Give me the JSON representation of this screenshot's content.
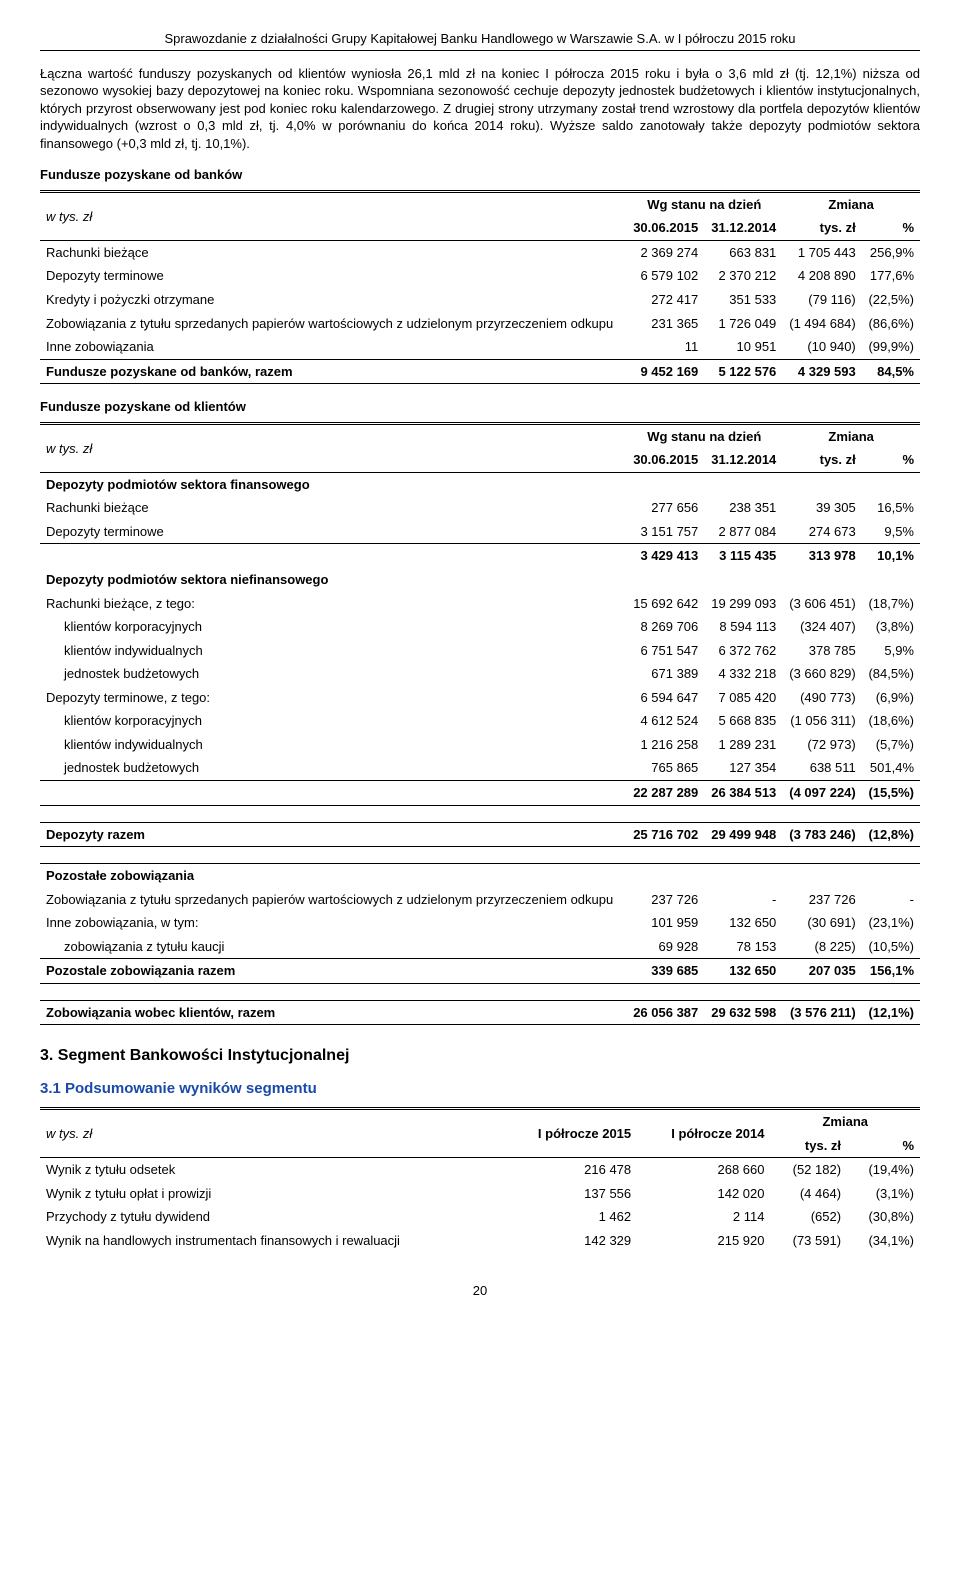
{
  "header": "Sprawozdanie z działalności Grupy Kapitałowej Banku Handlowego w Warszawie S.A. w I półroczu 2015 roku",
  "para1": "Łączna wartość funduszy pozyskanych od klientów wyniosła 26,1 mld zł na koniec I półrocza 2015 roku i była o 3,6 mld zł (tj. 12,1%) niższa od sezonowo wysokiej bazy depozytowej na koniec roku. Wspomniana sezonowość cechuje depozyty jednostek budżetowych i klientów instytucjonalnych, których przyrost obserwowany jest pod koniec roku kalendarzowego. Z drugiej strony utrzymany został trend wzrostowy dla portfela depozytów klientów indywidualnych (wzrost o 0,3 mld zł, tj. 4,0% w porównaniu do końca 2014 roku). Wyższe saldo zanotowały także depozyty podmiotów sektora finansowego (+0,3 mld zł, tj. 10,1%).",
  "banks_heading": "Fundusze pozyskane od banków",
  "col_unit": "w tys. zł",
  "col_wg": "Wg stanu na dzień",
  "col_zmiana": "Zmiana",
  "col_d1": "30.06.2015",
  "col_d2": "31.12.2014",
  "col_tyszl": "tys. zł",
  "col_pct": "%",
  "banks_rows": [
    {
      "label": "Rachunki bieżące",
      "v1": "2 369 274",
      "v2": "663 831",
      "d": "1 705 443",
      "p": "256,9%"
    },
    {
      "label": "Depozyty terminowe",
      "v1": "6 579 102",
      "v2": "2 370 212",
      "d": "4 208 890",
      "p": "177,6%"
    },
    {
      "label": "Kredyty i pożyczki otrzymane",
      "v1": "272 417",
      "v2": "351 533",
      "d": "(79 116)",
      "p": "(22,5%)"
    },
    {
      "label": "Zobowiązania z tytułu sprzedanych papierów wartościowych z udzielonym przyrzeczeniem odkupu",
      "v1": "231 365",
      "v2": "1 726 049",
      "d": "(1 494 684)",
      "p": "(86,6%)"
    },
    {
      "label": "Inne zobowiązania",
      "v1": "11",
      "v2": "10 951",
      "d": "(10 940)",
      "p": "(99,9%)"
    }
  ],
  "banks_total": {
    "label": "Fundusze pozyskane od banków, razem",
    "v1": "9 452 169",
    "v2": "5 122 576",
    "d": "4 329 593",
    "p": "84,5%"
  },
  "clients_heading": "Fundusze pozyskane od klientów",
  "sec_fin": "Depozyty podmiotów sektora finansowego",
  "fin_rows": [
    {
      "label": "Rachunki bieżące",
      "v1": "277 656",
      "v2": "238 351",
      "d": "39 305",
      "p": "16,5%"
    },
    {
      "label": "Depozyty terminowe",
      "v1": "3 151 757",
      "v2": "2 877 084",
      "d": "274 673",
      "p": "9,5%"
    }
  ],
  "fin_sub": {
    "v1": "3 429 413",
    "v2": "3 115 435",
    "d": "313 978",
    "p": "10,1%"
  },
  "sec_niefin": "Depozyty podmiotów sektora niefinansowego",
  "niefin_rows": [
    {
      "label": "Rachunki bieżące, z tego:",
      "v1": "15 692 642",
      "v2": "19 299 093",
      "d": "(3 606 451)",
      "p": "(18,7%)",
      "indent": false
    },
    {
      "label": "klientów korporacyjnych",
      "v1": "8 269 706",
      "v2": "8 594 113",
      "d": "(324 407)",
      "p": "(3,8%)",
      "indent": true
    },
    {
      "label": "klientów indywidualnych",
      "v1": "6 751 547",
      "v2": "6 372 762",
      "d": "378 785",
      "p": "5,9%",
      "indent": true
    },
    {
      "label": "jednostek budżetowych",
      "v1": "671 389",
      "v2": "4 332 218",
      "d": "(3 660 829)",
      "p": "(84,5%)",
      "indent": true
    },
    {
      "label": "Depozyty terminowe, z tego:",
      "v1": "6 594 647",
      "v2": "7 085 420",
      "d": "(490 773)",
      "p": "(6,9%)",
      "indent": false
    },
    {
      "label": "klientów korporacyjnych",
      "v1": "4 612 524",
      "v2": "5 668 835",
      "d": "(1 056 311)",
      "p": "(18,6%)",
      "indent": true
    },
    {
      "label": "klientów indywidualnych",
      "v1": "1 216 258",
      "v2": "1 289 231",
      "d": "(72 973)",
      "p": "(5,7%)",
      "indent": true
    },
    {
      "label": "jednostek budżetowych",
      "v1": "765 865",
      "v2": "127 354",
      "d": "638 511",
      "p": "501,4%",
      "indent": true
    }
  ],
  "niefin_sub": {
    "v1": "22 287 289",
    "v2": "26 384 513",
    "d": "(4 097 224)",
    "p": "(15,5%)"
  },
  "dep_razem": {
    "label": "Depozyty razem",
    "v1": "25 716 702",
    "v2": "29 499 948",
    "d": "(3 783 246)",
    "p": "(12,8%)"
  },
  "other_label": "Pozostałe zobowiązania",
  "other_rows": [
    {
      "label": "Zobowiązania z tytułu sprzedanych papierów wartościowych z udzielonym przyrzeczeniem odkupu",
      "v1": "237 726",
      "v2": "-",
      "d": "237 726",
      "p": "-",
      "indent": false
    },
    {
      "label": "Inne zobowiązania, w tym:",
      "v1": "101 959",
      "v2": "132 650",
      "d": "(30 691)",
      "p": "(23,1%)",
      "indent": false
    },
    {
      "label": "zobowiązania z tytułu kaucji",
      "v1": "69 928",
      "v2": "78 153",
      "d": "(8 225)",
      "p": "(10,5%)",
      "indent": true
    }
  ],
  "other_total": {
    "label": "Pozostale zobowiązania razem",
    "v1": "339 685",
    "v2": "132 650",
    "d": "207 035",
    "p": "156,1%"
  },
  "clients_total": {
    "label": "Zobowiązania wobec klientów, razem",
    "v1": "26 056 387",
    "v2": "29 632 598",
    "d": "(3 576 211)",
    "p": "(12,1%)"
  },
  "sec3": "3.    Segment Bankowości Instytucjonalnej",
  "sec31": "3.1   Podsumowanie wyników segmentu",
  "seg_h1": "I półrocze 2015",
  "seg_h2": "I półrocze 2014",
  "seg_rows": [
    {
      "label": "Wynik z tytułu odsetek",
      "v1": "216 478",
      "v2": "268 660",
      "d": "(52 182)",
      "p": "(19,4%)"
    },
    {
      "label": "Wynik z tytułu opłat i prowizji",
      "v1": "137 556",
      "v2": "142 020",
      "d": "(4 464)",
      "p": "(3,1%)"
    },
    {
      "label": "Przychody z tytułu dywidend",
      "v1": "1 462",
      "v2": "2 114",
      "d": "(652)",
      "p": "(30,8%)"
    },
    {
      "label": "Wynik na handlowych instrumentach finansowych i rewaluacji",
      "v1": "142 329",
      "v2": "215 920",
      "d": "(73 591)",
      "p": "(34,1%)"
    }
  ],
  "page": "20"
}
